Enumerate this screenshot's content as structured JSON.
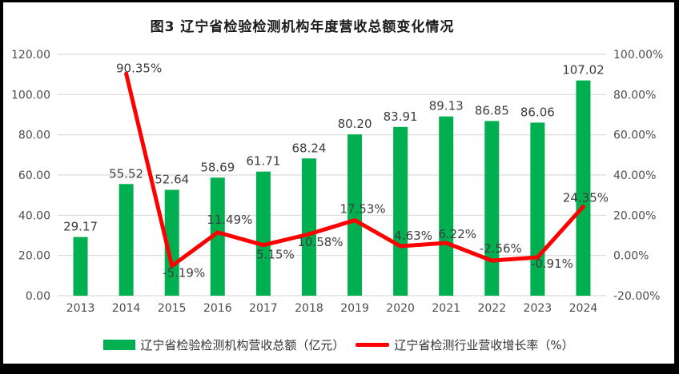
{
  "title": "图3  辽宁省检验检测机构年度营收总额变化情况",
  "colors": {
    "bar": "#00B050",
    "line": "#FF0000",
    "grid": "#D9D9D9",
    "axis_text": "#4d4d4d",
    "label_text": "#3d3d3d"
  },
  "chart_data": {
    "type": "combo",
    "categories": [
      "2013",
      "2014",
      "2015",
      "2016",
      "2017",
      "2018",
      "2019",
      "2020",
      "2021",
      "2022",
      "2023",
      "2024"
    ],
    "series": [
      {
        "name": "辽宁省检验检测机构营收总额（亿元）",
        "type": "bar",
        "axis": "left",
        "values": [
          29.17,
          55.52,
          52.64,
          58.69,
          61.71,
          68.24,
          80.2,
          83.91,
          89.13,
          86.85,
          86.06,
          107.02
        ],
        "labels": [
          "29.17",
          "55.52",
          "52.64",
          "58.69",
          "61.71",
          "68.24",
          "80.20",
          "83.91",
          "89.13",
          "86.85",
          "86.06",
          "107.02"
        ]
      },
      {
        "name": "辽宁省检测行业营收增长率（%）",
        "type": "line",
        "axis": "right",
        "values": [
          null,
          90.35,
          -5.19,
          11.49,
          5.15,
          10.58,
          17.53,
          4.63,
          6.22,
          -2.56,
          -0.91,
          24.35
        ],
        "labels": [
          null,
          "90.35%",
          "-5.19%",
          "11.49%",
          "5.15%",
          "10.58%",
          "17.53%",
          "4.63%",
          "6.22%",
          "-2.56%",
          "-0.91%",
          "24.35%"
        ],
        "label_sides": [
          null,
          "above",
          "below",
          "above",
          "below",
          "below",
          "above",
          "above",
          "above",
          "above",
          "below",
          "above"
        ]
      }
    ],
    "left_axis": {
      "min": 0,
      "max": 120,
      "step": 20,
      "tick_labels": [
        "0.00",
        "20.00",
        "40.00",
        "60.00",
        "80.00",
        "100.00",
        "120.00"
      ]
    },
    "right_axis": {
      "min": -20,
      "max": 100,
      "step": 20,
      "tick_labels": [
        "-20.00%",
        "0.00%",
        "20.00%",
        "40.00%",
        "60.00%",
        "80.00%",
        "100.00%"
      ]
    },
    "grid": true,
    "legend_position": "bottom"
  },
  "legend": {
    "items": [
      {
        "label": "辽宁省检验检测机构营收总额（亿元）",
        "marker": "bar-swatch"
      },
      {
        "label": "辽宁省检测行业营收增长率（%）",
        "marker": "line-swatch"
      }
    ]
  }
}
